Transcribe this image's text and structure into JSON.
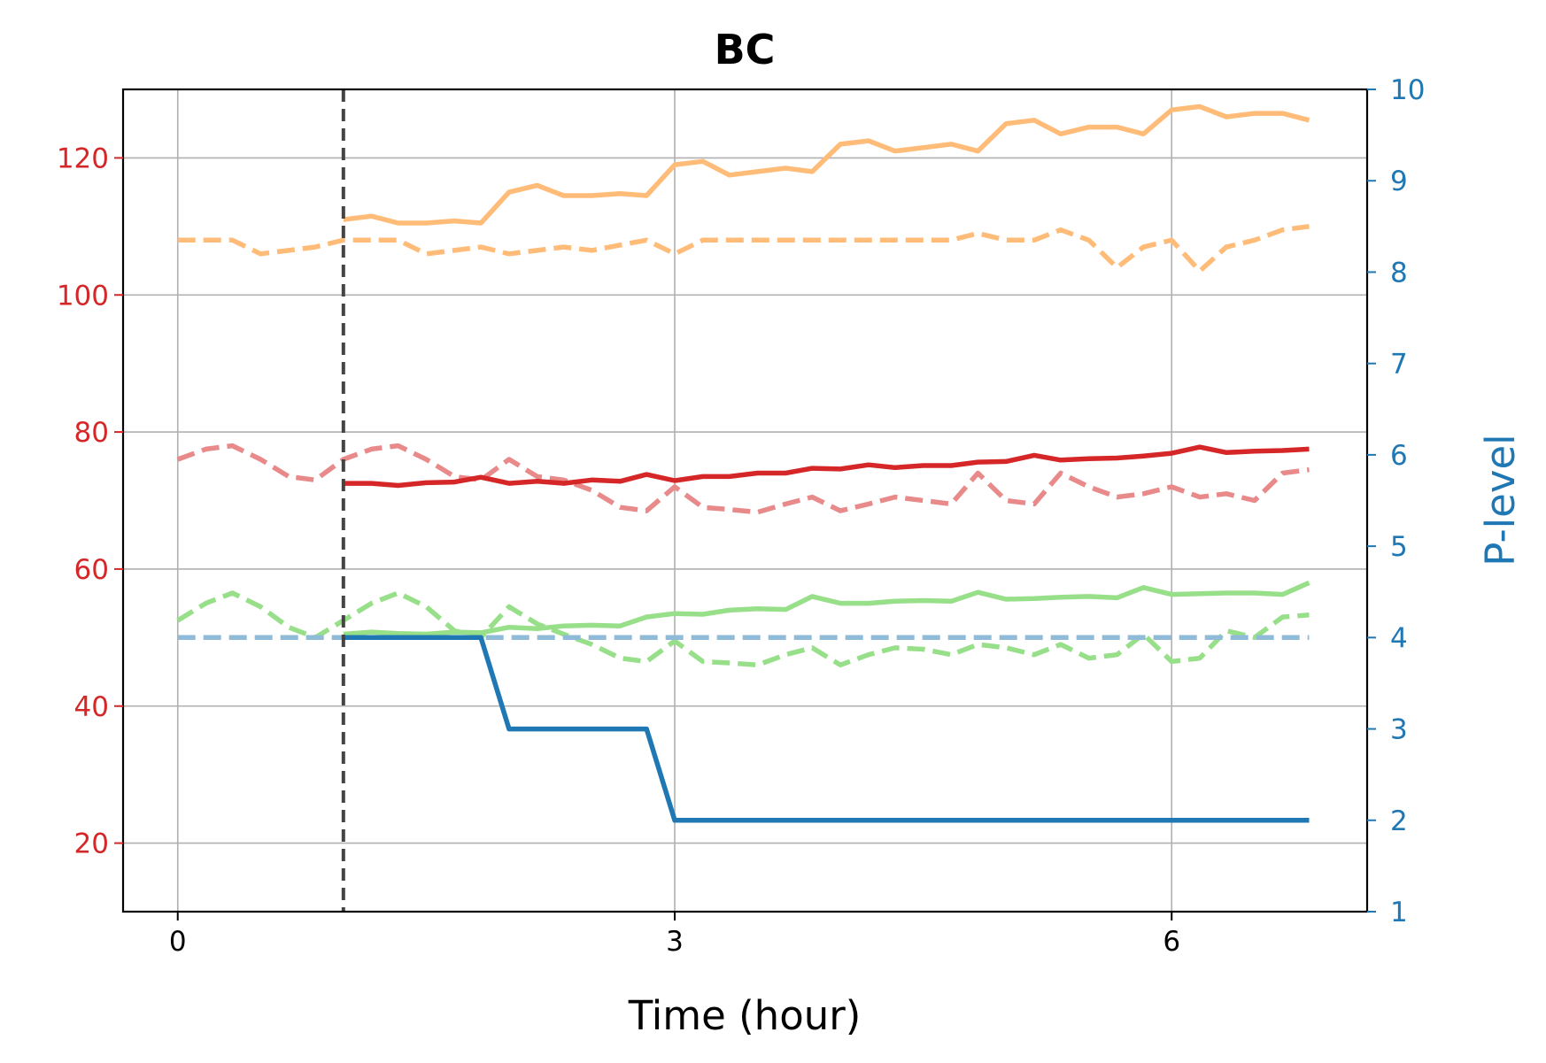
{
  "chart_data": {
    "type": "line",
    "title": "BC",
    "xlabel": "Time (hour)",
    "ylabel": "",
    "y2label": "P-level",
    "xlim": [
      -0.33,
      7.18
    ],
    "ylim": [
      10,
      130
    ],
    "y2lim": [
      1,
      10
    ],
    "xticks": [
      0,
      3,
      6
    ],
    "yticks": [
      20,
      40,
      60,
      80,
      100,
      120
    ],
    "y2ticks": [
      1,
      2,
      3,
      4,
      5,
      6,
      7,
      8,
      9,
      10
    ],
    "grid": true,
    "colors": {
      "left_axis": "#d62728",
      "right_axis": "#1f77b4",
      "orange": "#ffbb78",
      "red": "#d62728",
      "red_light": "#e8898a",
      "green": "#98df8a",
      "blue": "#1f77b4",
      "blue_light": "#8fbbd9",
      "vline": "#444444"
    },
    "vline_x": 1.0,
    "series": [
      {
        "axis": "left",
        "style": "dashed",
        "color": "#ffbb78",
        "x": [
          0,
          0.33,
          0.5,
          0.83,
          1.0,
          1.33,
          1.5,
          1.83,
          2.0,
          2.33,
          2.5,
          2.83,
          3.0,
          3.17,
          3.5,
          3.83,
          4.0,
          4.33,
          4.67,
          4.83,
          5.0,
          5.17,
          5.33,
          5.5,
          5.67,
          5.83,
          6.0,
          6.17,
          6.33,
          6.5,
          6.67,
          6.83
        ],
        "values": [
          108,
          108,
          106,
          107,
          108,
          108,
          106,
          107,
          106,
          107,
          106.5,
          108,
          106,
          108,
          108,
          108,
          108,
          108,
          108,
          109,
          108,
          108,
          109.5,
          108,
          104,
          107,
          108,
          103.5,
          107,
          108,
          109.5,
          110
        ]
      },
      {
        "axis": "left",
        "style": "solid",
        "color": "#ffbb78",
        "x": [
          1.0,
          1.17,
          1.33,
          1.5,
          1.67,
          1.83,
          2.0,
          2.17,
          2.33,
          2.5,
          2.67,
          2.83,
          3.0,
          3.17,
          3.33,
          3.5,
          3.67,
          3.83,
          4.0,
          4.17,
          4.33,
          4.5,
          4.67,
          4.83,
          5.0,
          5.17,
          5.33,
          5.5,
          5.67,
          5.83,
          6.0,
          6.17,
          6.33,
          6.5,
          6.67,
          6.83
        ],
        "values": [
          111,
          111.5,
          110.5,
          110.5,
          110.8,
          110.5,
          115,
          116,
          114.5,
          114.5,
          114.8,
          114.5,
          119,
          119.5,
          117.5,
          118,
          118.5,
          118,
          122,
          122.5,
          121,
          121.5,
          122,
          121,
          125,
          125.5,
          123.5,
          124.5,
          124.5,
          123.5,
          127,
          127.5,
          126,
          126.5,
          126.5,
          125.5
        ]
      },
      {
        "axis": "left",
        "style": "dashed",
        "color": "#e8898a",
        "x": [
          0,
          0.17,
          0.33,
          0.5,
          0.67,
          0.83,
          1.0,
          1.17,
          1.33,
          1.5,
          1.67,
          1.83,
          2.0,
          2.17,
          2.33,
          2.5,
          2.67,
          2.83,
          3.0,
          3.17,
          3.33,
          3.5,
          3.67,
          3.83,
          4.0,
          4.17,
          4.33,
          4.5,
          4.67,
          4.83,
          5.0,
          5.17,
          5.33,
          5.5,
          5.67,
          5.83,
          6.0,
          6.17,
          6.33,
          6.5,
          6.67,
          6.83
        ],
        "values": [
          76,
          77.5,
          78,
          76,
          73.5,
          73,
          76,
          77.5,
          78,
          76,
          73.5,
          73,
          76,
          73.5,
          73,
          71.5,
          69,
          68.5,
          72,
          69,
          68.7,
          68.3,
          69.5,
          70.5,
          68.5,
          69.5,
          70.5,
          70,
          69.5,
          74,
          70,
          69.5,
          74,
          72,
          70.5,
          71,
          72,
          70.5,
          71,
          70,
          74,
          74.5
        ]
      },
      {
        "axis": "left",
        "style": "solid",
        "color": "#d62728",
        "x": [
          1.0,
          1.17,
          1.33,
          1.5,
          1.67,
          1.83,
          2.0,
          2.17,
          2.33,
          2.5,
          2.67,
          2.83,
          3.0,
          3.17,
          3.33,
          3.5,
          3.67,
          3.83,
          4.0,
          4.17,
          4.33,
          4.5,
          4.67,
          4.83,
          5.0,
          5.17,
          5.33,
          5.5,
          5.67,
          5.83,
          6.0,
          6.17,
          6.33,
          6.5,
          6.67,
          6.83
        ],
        "values": [
          72.5,
          72.5,
          72.2,
          72.6,
          72.7,
          73.4,
          72.5,
          72.8,
          72.5,
          73,
          72.8,
          73.8,
          72.9,
          73.5,
          73.5,
          74,
          74,
          74.7,
          74.6,
          75.2,
          74.8,
          75.1,
          75.1,
          75.6,
          75.7,
          76.6,
          75.9,
          76.1,
          76.2,
          76.5,
          76.9,
          77.8,
          77,
          77.2,
          77.3,
          77.5
        ]
      },
      {
        "axis": "left",
        "style": "dashed",
        "color": "#98df8a",
        "x": [
          0,
          0.17,
          0.33,
          0.5,
          0.67,
          0.83,
          1.0,
          1.17,
          1.33,
          1.5,
          1.67,
          1.83,
          2.0,
          2.17,
          2.33,
          2.5,
          2.67,
          2.83,
          3.0,
          3.17,
          3.33,
          3.5,
          3.67,
          3.83,
          4.0,
          4.17,
          4.33,
          4.5,
          4.67,
          4.83,
          5.0,
          5.17,
          5.33,
          5.5,
          5.67,
          5.83,
          6.0,
          6.17,
          6.33,
          6.5,
          6.67,
          6.83
        ],
        "values": [
          52.5,
          55,
          56.5,
          54.5,
          51.5,
          50,
          52.5,
          55,
          56.5,
          54.5,
          51,
          50,
          54.5,
          52,
          50.5,
          49,
          47,
          46.5,
          49.5,
          46.5,
          46.3,
          46,
          47.5,
          48.5,
          46,
          47.5,
          48.5,
          48.3,
          47.5,
          49,
          48.5,
          47.5,
          49,
          47,
          47.5,
          50.5,
          46.5,
          47,
          51,
          50,
          53,
          53.3
        ]
      },
      {
        "axis": "left",
        "style": "solid",
        "color": "#98df8a",
        "x": [
          1.0,
          1.17,
          1.33,
          1.5,
          1.67,
          1.83,
          2.0,
          2.17,
          2.33,
          2.5,
          2.67,
          2.83,
          3.0,
          3.17,
          3.33,
          3.5,
          3.67,
          3.83,
          4.0,
          4.17,
          4.33,
          4.5,
          4.67,
          4.83,
          5.0,
          5.17,
          5.33,
          5.5,
          5.67,
          5.83,
          6.0,
          6.17,
          6.33,
          6.5,
          6.67,
          6.83
        ],
        "values": [
          50.5,
          50.8,
          50.6,
          50.5,
          50.8,
          50.7,
          51.5,
          51.3,
          51.7,
          51.8,
          51.7,
          53,
          53.5,
          53.4,
          54,
          54.2,
          54.1,
          56,
          55,
          55,
          55.3,
          55.4,
          55.3,
          56.6,
          55.6,
          55.7,
          55.9,
          56,
          55.8,
          57.3,
          56.3,
          56.4,
          56.5,
          56.5,
          56.3,
          58
        ]
      },
      {
        "axis": "right",
        "style": "dashed",
        "color": "#8fbbd9",
        "x": [
          0,
          6.83
        ],
        "values": [
          4,
          4
        ]
      },
      {
        "axis": "right",
        "style": "solid",
        "color": "#1f77b4",
        "x": [
          1.0,
          1.83,
          2.0,
          2.83,
          3.0,
          6.83
        ],
        "values": [
          4,
          4,
          3,
          3,
          2,
          2
        ]
      }
    ]
  }
}
